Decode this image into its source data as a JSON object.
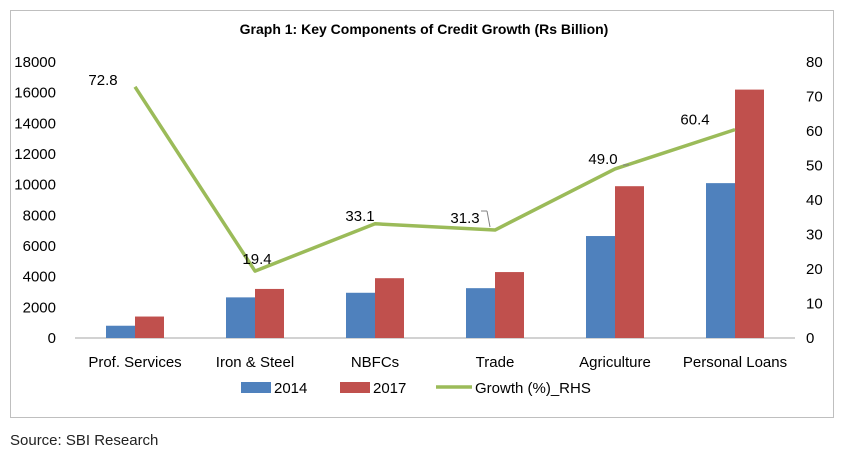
{
  "source": "Source: SBI Research",
  "chart_data": {
    "type": "bar",
    "title": "Graph 1: Key Components of Credit Growth (Rs Billion)",
    "categories": [
      "Prof. Services",
      "Iron & Steel",
      "NBFCs",
      "Trade",
      "Agriculture",
      "Personal Loans"
    ],
    "series": [
      {
        "name": "2014",
        "type": "bar",
        "axis": "left",
        "color": "#4f81bd",
        "values": [
          800,
          2650,
          2950,
          3250,
          6650,
          10100
        ]
      },
      {
        "name": "2017",
        "type": "bar",
        "axis": "left",
        "color": "#c0504d",
        "values": [
          1400,
          3200,
          3900,
          4300,
          9900,
          16200
        ]
      },
      {
        "name": "Growth (%)_RHS",
        "type": "line",
        "axis": "right",
        "color": "#9bbb59",
        "values": [
          72.8,
          19.4,
          33.1,
          31.3,
          49.0,
          60.4
        ],
        "data_labels": [
          "72.8",
          "19.4",
          "33.1",
          "31.3",
          "49.0",
          "60.4"
        ]
      }
    ],
    "y_left": {
      "min": 0,
      "max": 18000,
      "step": 2000,
      "ticks": [
        "0",
        "2000",
        "4000",
        "6000",
        "8000",
        "10000",
        "12000",
        "14000",
        "16000",
        "18000"
      ]
    },
    "y_right": {
      "min": 0,
      "max": 80,
      "step": 10,
      "ticks": [
        "0",
        "10",
        "20",
        "30",
        "40",
        "50",
        "60",
        "70",
        "80"
      ]
    },
    "grid": false,
    "legend": "bottom"
  }
}
